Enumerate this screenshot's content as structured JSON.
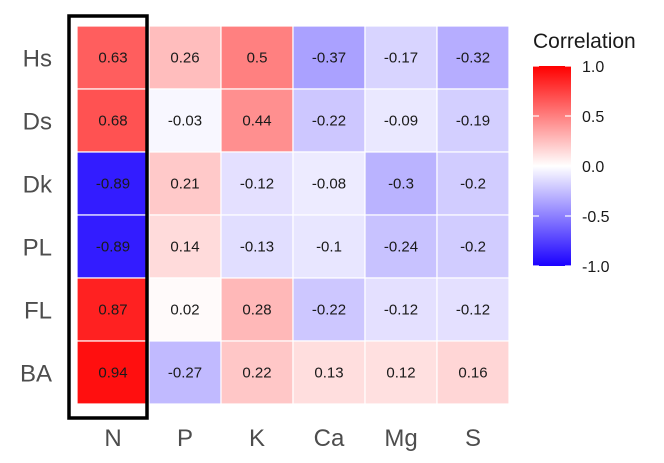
{
  "chart_data": {
    "type": "heatmap",
    "title": "",
    "xlabel": "",
    "ylabel": "",
    "rows": [
      "Hs",
      "Ds",
      "Dk",
      "PL",
      "FL",
      "BA"
    ],
    "columns": [
      "N",
      "P",
      "K",
      "Ca",
      "Mg",
      "S"
    ],
    "values": [
      [
        0.63,
        0.26,
        0.5,
        -0.37,
        -0.17,
        -0.32
      ],
      [
        0.68,
        -0.03,
        0.44,
        -0.22,
        -0.09,
        -0.19
      ],
      [
        -0.89,
        0.21,
        -0.12,
        -0.08,
        -0.3,
        -0.2
      ],
      [
        -0.89,
        0.14,
        -0.13,
        -0.1,
        -0.24,
        -0.2
      ],
      [
        0.87,
        0.02,
        0.28,
        -0.22,
        -0.12,
        -0.12
      ],
      [
        0.94,
        -0.27,
        0.22,
        0.13,
        0.12,
        0.16
      ]
    ],
    "value_labels": [
      [
        "0.63",
        "0.26",
        "0.5",
        "-0.37",
        "-0.17",
        "-0.32"
      ],
      [
        "0.68",
        "-0.03",
        "0.44",
        "-0.22",
        "-0.09",
        "-0.19"
      ],
      [
        "-0.89",
        "0.21",
        "-0.12",
        "-0.08",
        "-0.3",
        "-0.2"
      ],
      [
        "-0.89",
        "0.14",
        "-0.13",
        "-0.1",
        "-0.24",
        "-0.2"
      ],
      [
        "0.87",
        "0.02",
        "0.28",
        "-0.22",
        "-0.12",
        "-0.12"
      ],
      [
        "0.94",
        "-0.27",
        "0.22",
        "0.13",
        "0.12",
        "0.16"
      ]
    ],
    "highlighted_column": "N",
    "color_scale": {
      "low": "#1a00ff",
      "mid": "#ffffff",
      "high": "#ff0000",
      "limits": [
        -1.0,
        1.0
      ]
    },
    "legend": {
      "title": "Correlation",
      "ticks": [
        "1.0",
        "0.5",
        "0.0",
        "-0.5",
        "-1.0"
      ],
      "tick_values": [
        1.0,
        0.5,
        0.0,
        -0.5,
        -1.0
      ],
      "placement": "right"
    }
  }
}
